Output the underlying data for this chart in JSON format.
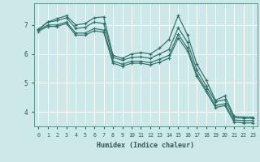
{
  "xlabel": "Humidex (Indice chaleur)",
  "bg_color": "#cde8e8",
  "grid_color": "#ffffff",
  "line_color": "#2d7068",
  "xlim": [
    -0.5,
    23.5
  ],
  "ylim": [
    3.5,
    7.75
  ],
  "xticks": [
    0,
    1,
    2,
    3,
    4,
    5,
    6,
    7,
    8,
    9,
    10,
    11,
    12,
    13,
    14,
    15,
    16,
    17,
    18,
    19,
    20,
    21,
    22,
    23
  ],
  "yticks": [
    4,
    5,
    6,
    7
  ],
  "series": [
    [
      6.85,
      7.1,
      7.22,
      7.32,
      7.0,
      7.05,
      7.25,
      7.28,
      5.95,
      5.85,
      6.0,
      6.05,
      6.0,
      6.2,
      6.5,
      7.32,
      6.65,
      5.65,
      5.1,
      4.4,
      4.55,
      3.85,
      3.82,
      3.82
    ],
    [
      6.85,
      7.1,
      7.15,
      7.25,
      6.88,
      6.92,
      7.1,
      7.05,
      5.88,
      5.78,
      5.88,
      5.9,
      5.85,
      6.0,
      6.15,
      6.9,
      6.4,
      5.45,
      4.9,
      4.35,
      4.42,
      3.8,
      3.78,
      3.78
    ],
    [
      6.82,
      7.0,
      7.0,
      7.1,
      6.72,
      6.72,
      6.88,
      6.82,
      5.75,
      5.65,
      5.75,
      5.75,
      5.7,
      5.82,
      5.95,
      6.68,
      6.2,
      5.3,
      4.78,
      4.22,
      4.28,
      3.72,
      3.7,
      3.7
    ],
    [
      6.78,
      6.95,
      6.95,
      7.05,
      6.65,
      6.65,
      6.8,
      6.75,
      5.68,
      5.58,
      5.68,
      5.68,
      5.62,
      5.72,
      5.85,
      6.55,
      6.1,
      5.22,
      4.7,
      4.15,
      4.22,
      3.65,
      3.62,
      3.62
    ]
  ]
}
